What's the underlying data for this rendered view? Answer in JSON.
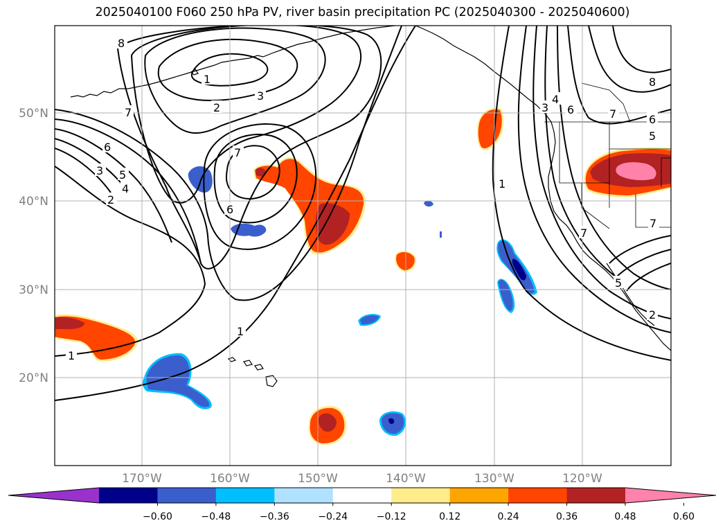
{
  "title": "2025040100 F060 250 hPa PV, river basin precipitation PC (2025040300 - 2025040600)",
  "latitude_labels": [
    "50°N",
    "40°N",
    "30°N",
    "20°N"
  ],
  "longitude_labels": [
    "170°W",
    "160°W",
    "150°W",
    "140°W",
    "130°W",
    "120°W"
  ],
  "colorbar": {
    "ticks": [
      "−0.60",
      "−0.48",
      "−0.36",
      "−0.24",
      "−0.12",
      "0.12",
      "0.24",
      "0.36",
      "0.48",
      "0.60"
    ],
    "colors": [
      "#9932cc",
      "#00008b",
      "#3a5fcd",
      "#00bfff",
      "#b0e2ff",
      "#ffffff",
      "#ffec8b",
      "#ffa500",
      "#ff4500",
      "#b22222",
      "#ff82ab"
    ]
  },
  "contour_labels": [
    "8",
    "1",
    "2",
    "3",
    "7",
    "6",
    "5",
    "4",
    "2",
    "3",
    "7",
    "6",
    "1",
    "1",
    "1",
    "3",
    "4",
    "6",
    "8",
    "7",
    "6",
    "5",
    "7",
    "7",
    "5",
    "2"
  ],
  "colors": {
    "grid": "#b0b0b0",
    "coast": "#000000",
    "contour": "#000000"
  }
}
